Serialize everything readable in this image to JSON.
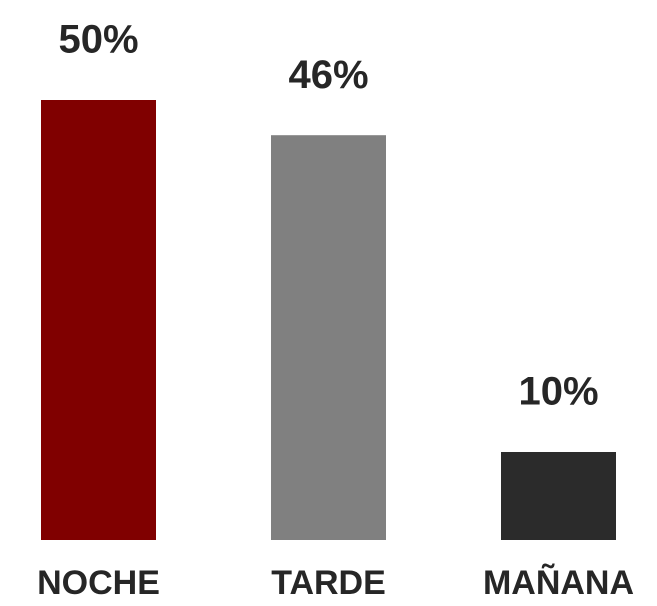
{
  "chart_data": {
    "type": "bar",
    "categories": [
      "NOCHE",
      "TARDE",
      "MAÑANA"
    ],
    "values": [
      50,
      46,
      10
    ],
    "value_labels": [
      "50%",
      "46%",
      "10%"
    ],
    "colors": [
      "#800000",
      "#808080",
      "#2b2b2b"
    ]
  }
}
